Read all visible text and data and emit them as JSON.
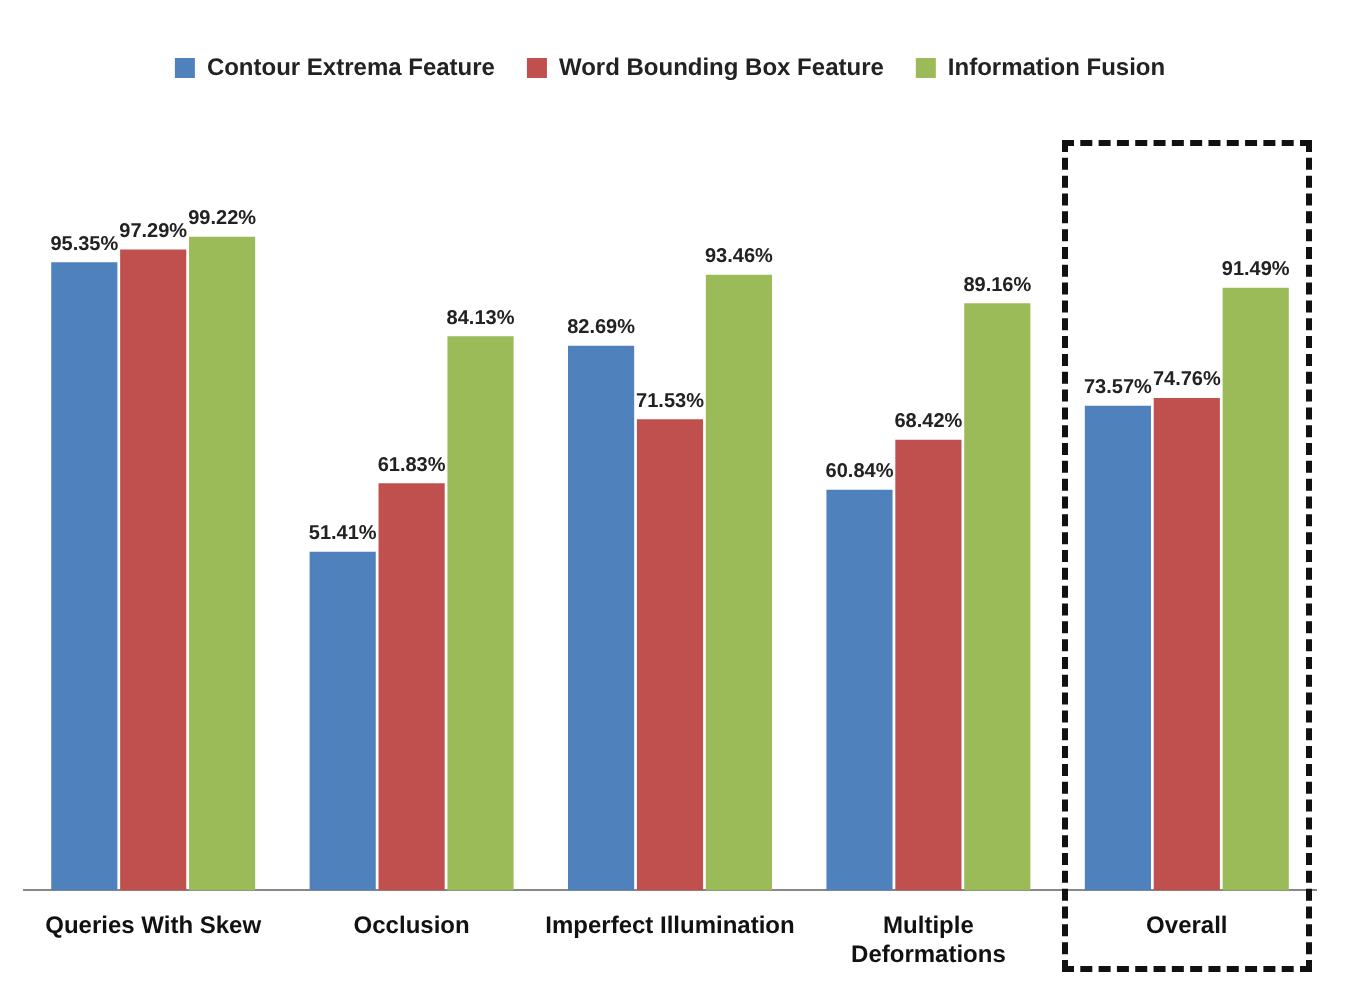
{
  "chart_data": {
    "type": "bar",
    "categories": [
      "Queries With Skew",
      "Occlusion",
      "Imperfect Illumination",
      "Multiple\nDeformations",
      "Overall"
    ],
    "series": [
      {
        "name": "Contour Extrema Feature",
        "color": "#4f81bd",
        "values": [
          95.35,
          51.41,
          82.69,
          60.84,
          73.57
        ],
        "value_labels": [
          "95.35%",
          "51.41%",
          "82.69%",
          "60.84%",
          "73.57%"
        ]
      },
      {
        "name": "Word Bounding Box Feature",
        "color": "#c0504d",
        "values": [
          97.29,
          61.83,
          71.53,
          68.42,
          74.76
        ],
        "value_labels": [
          "97.29%",
          "61.83%",
          "71.53%",
          "68.42%",
          "74.76%"
        ]
      },
      {
        "name": "Information Fusion",
        "color": "#9bbb59",
        "values": [
          99.22,
          84.13,
          93.46,
          89.16,
          91.49
        ],
        "value_labels": [
          "99.22%",
          "84.13%",
          "93.46%",
          "89.16%",
          "91.49%"
        ]
      }
    ],
    "legend": "top",
    "grid": false
  }
}
